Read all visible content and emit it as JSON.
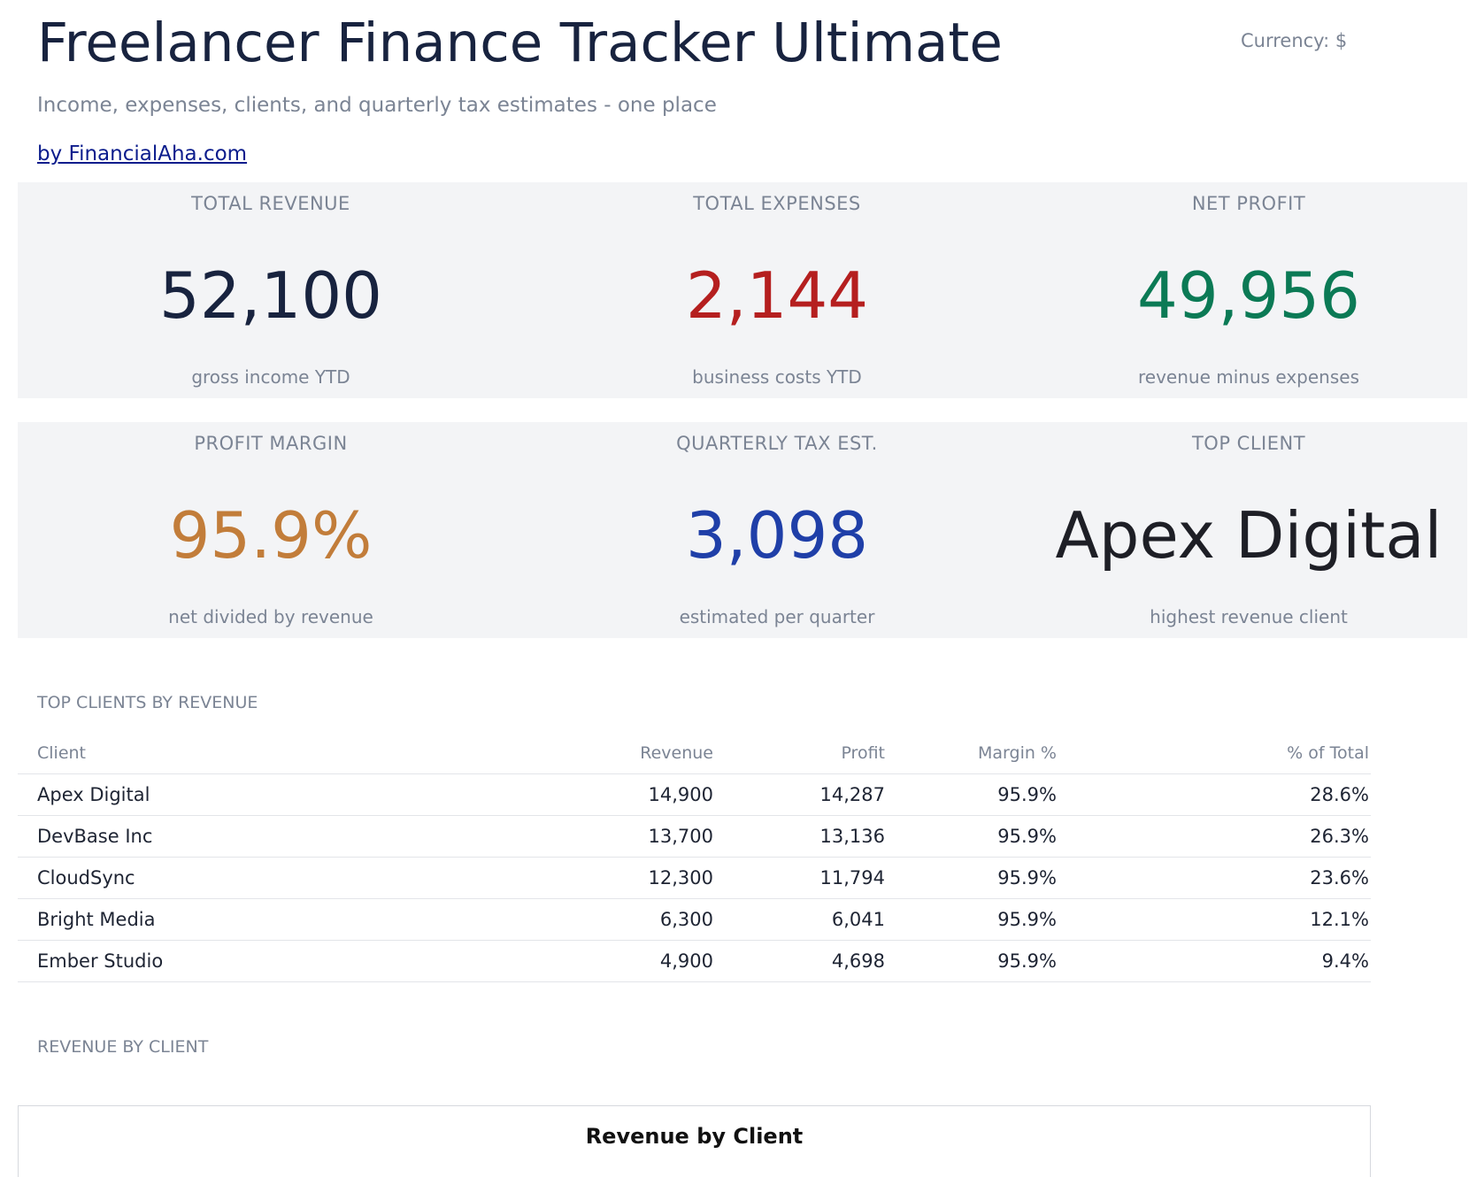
{
  "header": {
    "title": "Freelancer Finance Tracker Ultimate",
    "currency": "Currency: $",
    "subtitle": "Income, expenses, clients, and quarterly tax estimates - one place",
    "byline": "by FinancialAha.com"
  },
  "kpis": [
    {
      "label": "TOTAL REVENUE",
      "value": "52,100",
      "sub": "gross income YTD",
      "color": "#18233f"
    },
    {
      "label": "TOTAL EXPENSES",
      "value": "2,144",
      "sub": "business costs YTD",
      "color": "#b51f1f"
    },
    {
      "label": "NET PROFIT",
      "value": "49,956",
      "sub": "revenue minus expenses",
      "color": "#0b7a55"
    },
    {
      "label": "PROFIT MARGIN",
      "value": "95.9%",
      "sub": "net divided by revenue",
      "color": "#c27d3a"
    },
    {
      "label": "QUARTERLY TAX EST.",
      "value": "3,098",
      "sub": "estimated per quarter",
      "color": "#1f3fa8"
    },
    {
      "label": "TOP CLIENT",
      "value": "Apex Digital",
      "sub": "highest revenue client",
      "color": "#1e1f26"
    }
  ],
  "clients_section": {
    "label": "TOP CLIENTS BY REVENUE",
    "columns": [
      "Client",
      "Revenue",
      "Profit",
      "Margin %",
      "% of Total"
    ],
    "rows": [
      [
        "Apex Digital",
        "14,900",
        "14,287",
        "95.9%",
        "28.6%"
      ],
      [
        "DevBase Inc",
        "13,700",
        "13,136",
        "95.9%",
        "26.3%"
      ],
      [
        "CloudSync",
        "12,300",
        "11,794",
        "95.9%",
        "23.6%"
      ],
      [
        "Bright Media",
        "6,300",
        "6,041",
        "95.9%",
        "12.1%"
      ],
      [
        "Ember Studio",
        "4,900",
        "4,698",
        "95.9%",
        "9.4%"
      ]
    ]
  },
  "chart_section": {
    "label": "REVENUE BY CLIENT",
    "chart_title": "Revenue by Client"
  }
}
